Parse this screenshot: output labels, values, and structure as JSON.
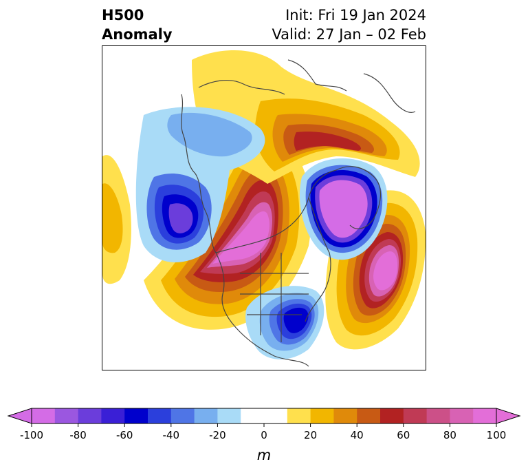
{
  "title": {
    "left_line1": "H500",
    "left_line2": "Anomaly",
    "right_line1": "Init: Fri 19 Jan 2024",
    "right_line2": "Valid: 27 Jan – 02 Feb"
  },
  "colorbar": {
    "unit_label": "m",
    "min": -100,
    "max": 100,
    "step": 10,
    "extend": "both",
    "tick_values": [
      -100,
      -80,
      -60,
      -40,
      -20,
      0,
      20,
      40,
      60,
      80,
      100
    ],
    "tick_labels": [
      "-100",
      "-80",
      "-60",
      "-40",
      "-20",
      "0",
      "20",
      "40",
      "60",
      "80",
      "100"
    ],
    "colors": [
      "#d46ce6",
      "#9b57e0",
      "#6b3ddb",
      "#3a1fd6",
      "#0000cc",
      "#2b3fdc",
      "#4f75e6",
      "#78afef",
      "#a9dbf7",
      "#ffffff",
      "#ffffff",
      "#ffe04d",
      "#f2b600",
      "#e08a0a",
      "#c85a14",
      "#b22222",
      "#c03a55",
      "#cc5088",
      "#d862b4",
      "#e36ed8"
    ],
    "under_color": "#d46ce6",
    "over_color": "#e36ed8"
  },
  "map": {
    "projection": "north polar stereographic",
    "region": "North America and North Atlantic",
    "features": [
      {
        "name": "ridge-western-north-america",
        "sign": "positive",
        "peak_anomaly_m": 100
      },
      {
        "name": "ridge-greenland-north",
        "sign": "positive",
        "peak_anomaly_m": 70
      },
      {
        "name": "ridge-north-atlantic",
        "sign": "positive",
        "peak_anomaly_m": 100
      },
      {
        "name": "trough-northeast-pacific",
        "sign": "negative",
        "peak_anomaly_m": -70
      },
      {
        "name": "trough-eastern-united-states",
        "sign": "negative",
        "peak_anomaly_m": -70
      },
      {
        "name": "trough-greenland-iceland",
        "sign": "negative",
        "peak_anomaly_m": -100
      },
      {
        "name": "trough-aleutians",
        "sign": "negative",
        "peak_anomaly_m": -30
      },
      {
        "name": "ridge-far-west-pacific",
        "sign": "positive",
        "peak_anomaly_m": 30
      }
    ]
  }
}
